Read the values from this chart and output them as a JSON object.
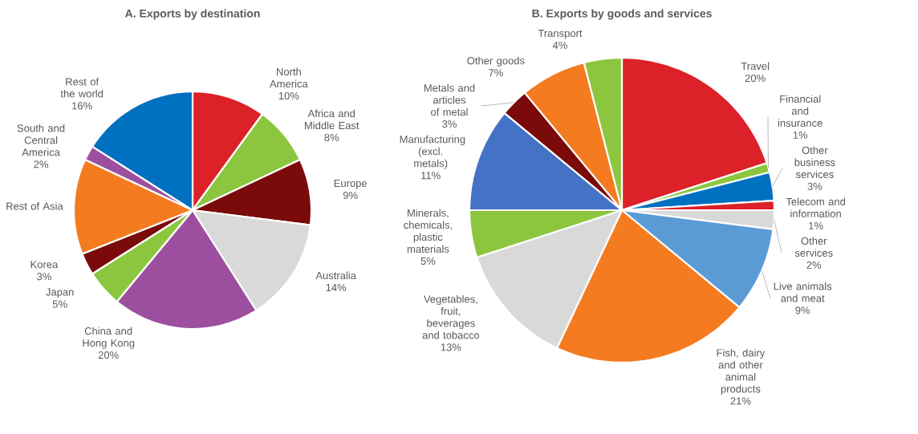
{
  "chart_data": [
    {
      "type": "pie",
      "title": "A. Exports by destination",
      "categories": [
        "North America",
        "Africa and Middle East",
        "Europe",
        "Australia",
        "China and Hong Kong",
        "Japan",
        "Korea",
        "Rest of Asia",
        "South and Central America",
        "Rest of the world"
      ],
      "values": [
        10,
        8,
        9,
        14,
        20,
        5,
        3,
        13,
        2,
        16
      ],
      "value_labels": [
        "10%",
        "8%",
        "9%",
        "14%",
        "20%",
        "5%",
        "3%",
        null,
        "2%",
        "16%"
      ],
      "colors": [
        "#dc2128",
        "#8cc63f",
        "#7b0a0a",
        "#d9d9d9",
        "#9c4f9f",
        "#8cc63f",
        "#7b0a0a",
        "#f47b20",
        "#9c4f9f",
        "#0070c0"
      ]
    },
    {
      "type": "pie",
      "title": "B. Exports by goods and services",
      "categories": [
        "Travel",
        "Financial and insurance",
        "Other business services",
        "Telecom and information",
        "Other services",
        "Live animals and meat",
        "Fish, dairy and other animal products",
        "Vegetables, fruit, beverages and tobacco",
        "Minerals, chemicals, plastic materials",
        "Manufacturing (excl. metals)",
        "Metals and articles of metal",
        "Other goods",
        "Transport"
      ],
      "values": [
        20,
        1,
        3,
        1,
        2,
        9,
        21,
        13,
        5,
        11,
        3,
        7,
        4
      ],
      "value_labels": [
        "20%",
        "1%",
        "3%",
        "1%",
        "2%",
        "9%",
        "21%",
        "13%",
        "5%",
        "11%",
        "3%",
        "7%",
        "4%"
      ],
      "colors": [
        "#dc2128",
        "#8cc63f",
        "#0070c0",
        "#dc2128",
        "#d9d9d9",
        "#5b9bd5",
        "#f47b20",
        "#d9d9d9",
        "#8cc63f",
        "#4472c4",
        "#7b0a0a",
        "#f47b20",
        "#8cc63f"
      ]
    }
  ]
}
